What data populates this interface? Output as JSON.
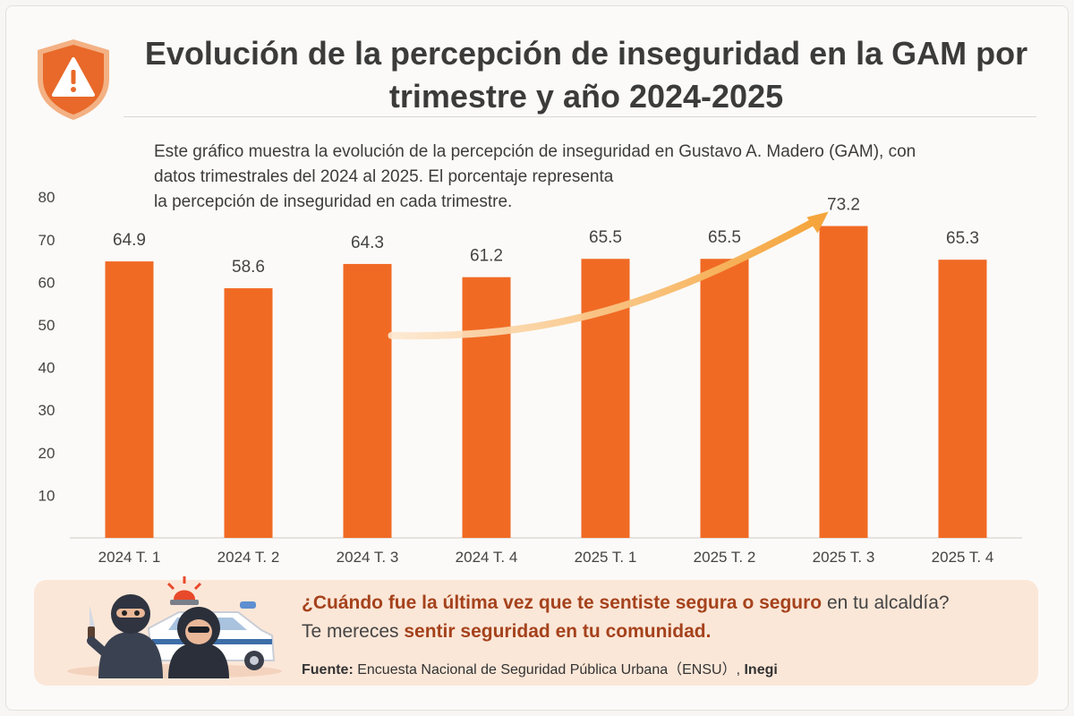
{
  "title_line1": "Evolución de la percepción de inseguridad en la GAM por",
  "title_line2": "trimestre y año 2024-2025",
  "description": {
    "line1": "Este gráfico muestra la evolución de la percepción de inseguridad en Gustavo A. Madero (GAM), con",
    "line2": "datos trimestrales del 2024 al 2025. El porcentaje representa",
    "line3": "la percepción de inseguridad en cada trimestre."
  },
  "chart_data": {
    "type": "bar",
    "categories": [
      "2024 T. 1",
      "2024 T. 2",
      "2024 T. 3",
      "2024 T. 4",
      "2025 T. 1",
      "2025 T. 2",
      "2025 T. 3",
      "2025 T. 4"
    ],
    "values": [
      64.9,
      58.6,
      64.3,
      61.2,
      65.5,
      65.5,
      73.2,
      65.3
    ],
    "labels": [
      "64.9",
      "58.6",
      "64.3",
      "61.2",
      "65.5",
      "65.5",
      "73.2",
      "65.3"
    ],
    "yticks": [
      10,
      20,
      30,
      40,
      50,
      60,
      70,
      80
    ],
    "ylim": [
      0,
      80
    ],
    "title": "Evolución de la percepción de inseguridad en la GAM por trimestre y año 2024-2025",
    "xlabel": "",
    "ylabel": "",
    "trend_arrow": "2024 T. 3 → 2025 T. 3",
    "bar_color": "#f06a24",
    "arrow_color": "#f5a53c"
  },
  "callout": {
    "question_highlight": "¿Cuándo fue la última vez que te sentiste segura o seguro",
    "question_rest": " en tu alcaldía?",
    "line2_start": "Te mereces ",
    "line2_highlight": "sentir seguridad en tu comunidad."
  },
  "source": {
    "label": "Fuente:",
    "text": " Encuesta Nacional de Seguridad Pública Urbana（ENSU）, ",
    "org": "Inegi"
  },
  "colors": {
    "accent": "#e8692a",
    "highlight_text": "#a5421c",
    "panel": "#fbe7d8"
  }
}
